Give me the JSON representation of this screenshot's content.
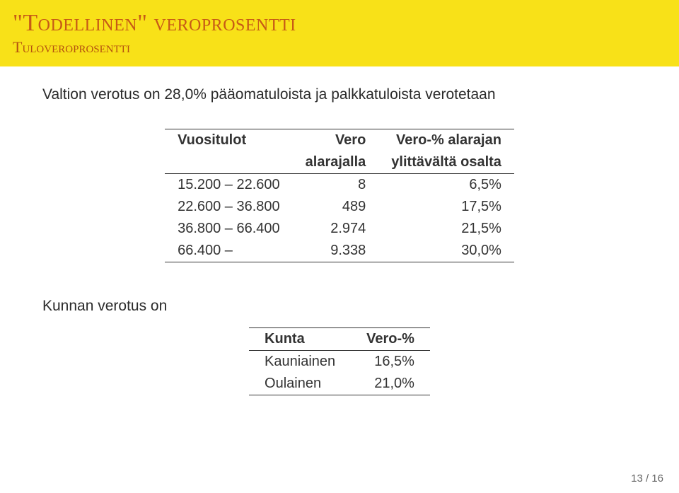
{
  "header": {
    "title_quoted_word": "\"Todellinen\"",
    "title_rest": " veroprosentti",
    "subtitle": "Tuloveroprosentti"
  },
  "intro_text": "Valtion verotus on 28,0% pääomatuloista ja palkkatuloista verotetaan",
  "tax_table": {
    "columns": {
      "c1_top": "Vuositulot",
      "c2_top": "Vero",
      "c2_sub": "alarajalla",
      "c3_top": "Vero-% alarajan",
      "c3_sub": "ylittävältä osalta"
    },
    "rows": [
      {
        "range": "15.200 – 22.600",
        "vero": "8",
        "pct": "6,5%"
      },
      {
        "range": "22.600 – 36.800",
        "vero": "489",
        "pct": "17,5%"
      },
      {
        "range": "36.800 – 66.400",
        "vero": "2.974",
        "pct": "21,5%"
      },
      {
        "range": "66.400 –",
        "vero": "9.338",
        "pct": "30,0%"
      }
    ]
  },
  "muni_label": "Kunnan verotus on",
  "muni_table": {
    "columns": {
      "c1": "Kunta",
      "c2": "Vero-%"
    },
    "rows": [
      {
        "name": "Kauniainen",
        "pct": "16,5%"
      },
      {
        "name": "Oulainen",
        "pct": "21,0%"
      }
    ]
  },
  "page_number": "13 / 16",
  "colors": {
    "header_bg": "#f8e118",
    "title": "#c75a16",
    "subtitle": "#b5520f",
    "text": "#333333",
    "rule": "#333333",
    "page_bg": "#ffffff"
  }
}
